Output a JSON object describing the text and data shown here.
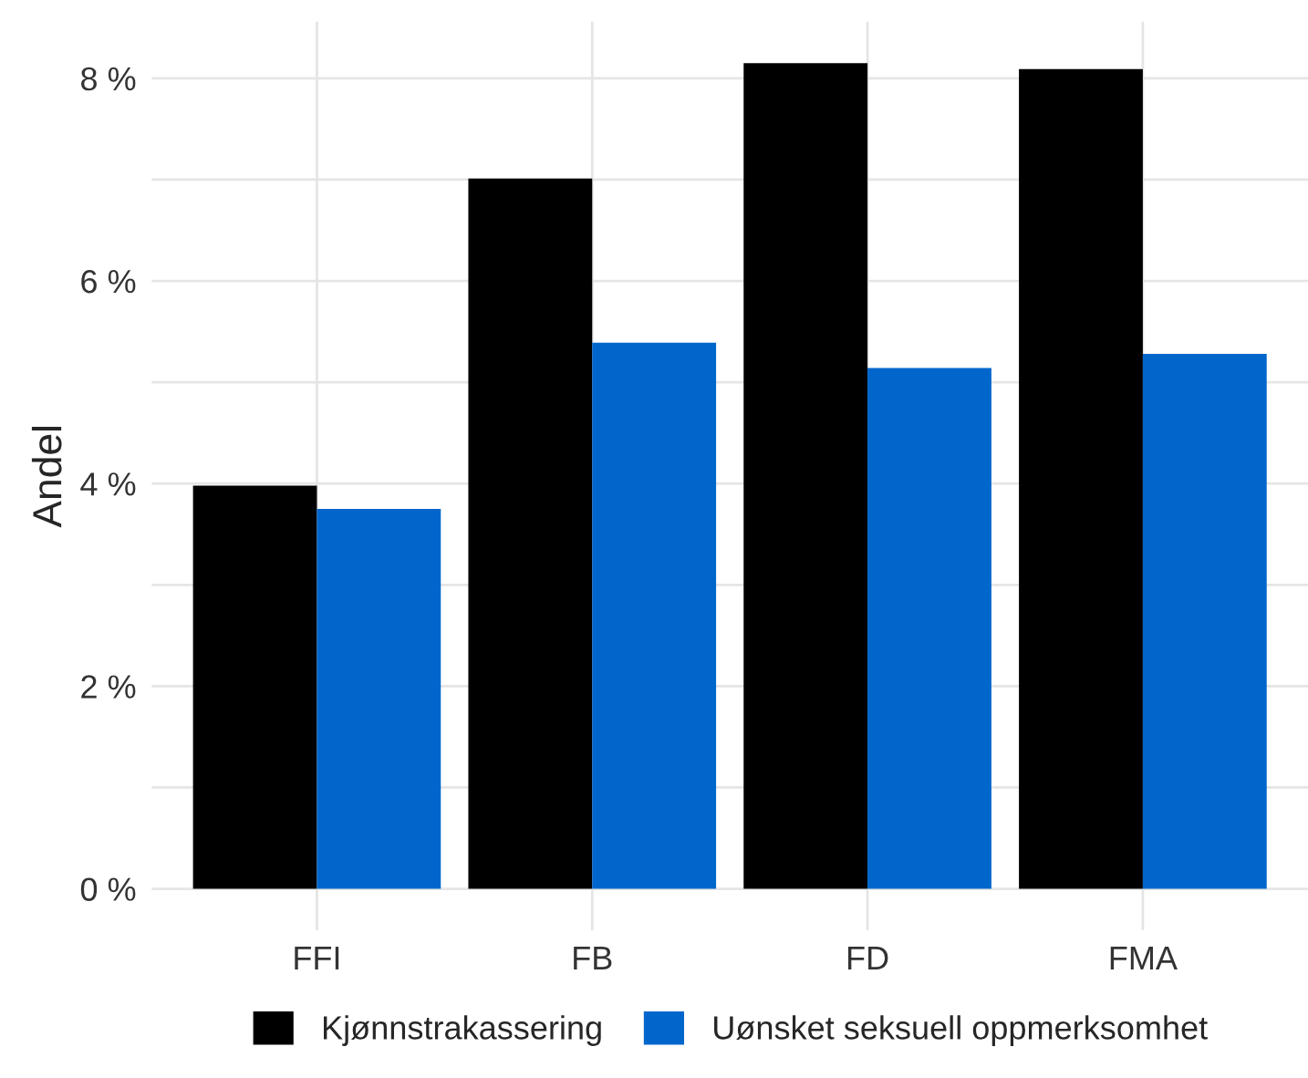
{
  "chart_data": {
    "type": "bar",
    "ylabel": "Andel",
    "categories": [
      "FFI",
      "FB",
      "FD",
      "FMA"
    ],
    "series": [
      {
        "name": "Kjønnstrakassering",
        "color": "#000000",
        "values": [
          3.98,
          7.01,
          8.15,
          8.09
        ]
      },
      {
        "name": "Uønsket seksuell oppmerksomhet",
        "color": "#0066cc",
        "values": [
          3.75,
          5.39,
          5.14,
          5.28
        ]
      }
    ],
    "ylim": [
      -0.41,
      8.56
    ],
    "yticks": [
      {
        "value": 0,
        "label": "0 %"
      },
      {
        "value": 1,
        "label": null
      },
      {
        "value": 2,
        "label": "2 %"
      },
      {
        "value": 3,
        "label": null
      },
      {
        "value": 4,
        "label": "4 %"
      },
      {
        "value": 5,
        "label": null
      },
      {
        "value": 6,
        "label": "6 %"
      },
      {
        "value": 7,
        "label": null
      },
      {
        "value": 8,
        "label": "8 %"
      }
    ],
    "grid": true,
    "legend": "bottom"
  }
}
